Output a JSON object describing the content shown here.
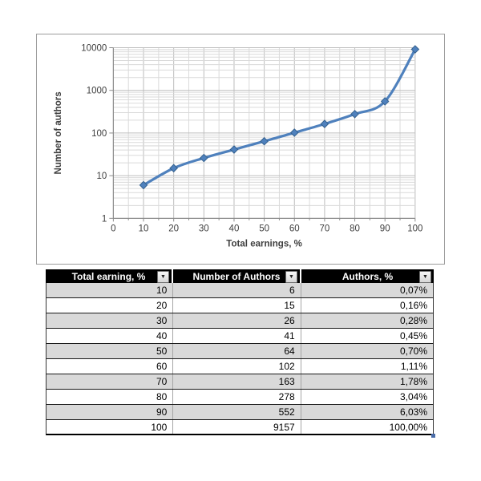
{
  "colors": {
    "line": "#4F81BD",
    "grid_minor": "#DADADA",
    "grid_major": "#BDBDBD",
    "axis": "#8C8C8C",
    "label": "#3F3F3F",
    "chart_border": "#9C9C9C",
    "header_bg": "#000000",
    "header_text": "#FFFFFF",
    "stripe": "#D9D9D9",
    "row_border": "#1A1A1A",
    "divider": "#A6A6A6",
    "outer": "#333333",
    "handle": "#4A6CA8"
  },
  "chart_data": {
    "type": "line",
    "title": "",
    "xlabel": "Total earnings, %",
    "ylabel": "Number of authors",
    "x": [
      10,
      20,
      30,
      40,
      50,
      60,
      70,
      80,
      90,
      100
    ],
    "series": [
      {
        "name": "Number of authors",
        "values": [
          6,
          15,
          26,
          41,
          64,
          102,
          163,
          278,
          552,
          9157
        ]
      }
    ],
    "xlim": [
      0,
      100
    ],
    "x_major_step": 10,
    "x_minor_step": 5,
    "x_tick_labels": [
      "0",
      "10",
      "20",
      "30",
      "40",
      "50",
      "60",
      "70",
      "80",
      "90",
      "100"
    ],
    "y_scale": "log10",
    "ylim": [
      1,
      10000
    ],
    "y_tick_labels": [
      "1",
      "10",
      "100",
      "1000",
      "10000"
    ],
    "grid": true,
    "legend": "none",
    "marker": "diamond",
    "smooth": true
  },
  "table": {
    "filter_icon": "▼",
    "columns": [
      {
        "label": "Total earning, %"
      },
      {
        "label": "Number of Authors"
      },
      {
        "label": "Authors, %"
      }
    ],
    "rows": [
      [
        "10",
        "6",
        "0,07%"
      ],
      [
        "20",
        "15",
        "0,16%"
      ],
      [
        "30",
        "26",
        "0,28%"
      ],
      [
        "40",
        "41",
        "0,45%"
      ],
      [
        "50",
        "64",
        "0,70%"
      ],
      [
        "60",
        "102",
        "1,11%"
      ],
      [
        "70",
        "163",
        "1,78%"
      ],
      [
        "80",
        "278",
        "3,04%"
      ],
      [
        "90",
        "552",
        "6,03%"
      ],
      [
        "100",
        "9157",
        "100,00%"
      ]
    ]
  }
}
